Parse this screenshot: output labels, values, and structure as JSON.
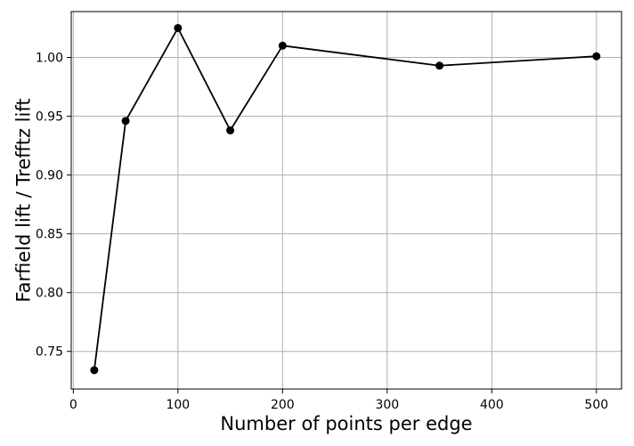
{
  "chart_data": {
    "type": "line",
    "title": "",
    "xlabel": "Number of points per edge",
    "ylabel": "Farfield lift / Trefftz lift",
    "xlim": [
      -2,
      524
    ],
    "ylim": [
      0.718,
      1.039
    ],
    "xticks": [
      0,
      100,
      200,
      300,
      400,
      500
    ],
    "xtick_labels": [
      "0",
      "100",
      "200",
      "300",
      "400",
      "500"
    ],
    "yticks": [
      0.75,
      0.8,
      0.85,
      0.9,
      0.95,
      1.0
    ],
    "ytick_labels": [
      "0.75",
      "0.80",
      "0.85",
      "0.90",
      "0.95",
      "1.00"
    ],
    "grid": true,
    "series": [
      {
        "color": "#000000",
        "marker": "circle",
        "x": [
          20,
          50,
          100,
          150,
          200,
          350,
          500
        ],
        "y": [
          0.734,
          0.946,
          1.025,
          0.938,
          1.01,
          0.993,
          1.001
        ]
      }
    ]
  }
}
